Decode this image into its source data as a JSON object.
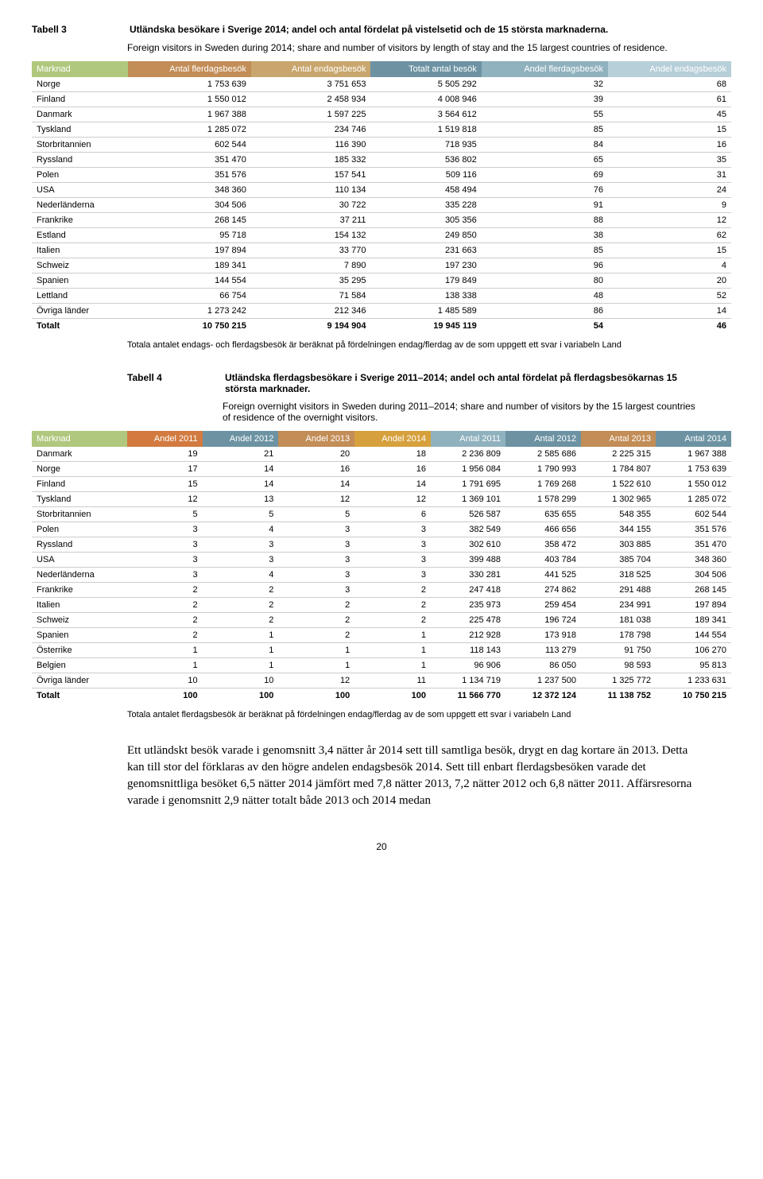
{
  "tabell3": {
    "label": "Tabell 3",
    "title": "Utländska besökare i Sverige 2014; andel och antal fördelat på vistelsetid och de 15 största marknaderna.",
    "subtitle": "Foreign visitors in Sweden during 2014; share and number of visitors by length of stay and the 15 largest countries of residence.",
    "header_colors": [
      "#b0c77e",
      "#c28d57",
      "#c8a66d",
      "#6d93a3",
      "#90b1be",
      "#b7cfd9"
    ],
    "columns": [
      "Marknad",
      "Antal flerdagsbesök",
      "Antal endagsbesök",
      "Totalt antal besök",
      "Andel flerdagsbesök",
      "Andel endagsbesök"
    ],
    "rows": [
      [
        "Norge",
        "1 753 639",
        "3 751 653",
        "5 505 292",
        "32",
        "68"
      ],
      [
        "Finland",
        "1 550 012",
        "2 458 934",
        "4 008 946",
        "39",
        "61"
      ],
      [
        "Danmark",
        "1 967 388",
        "1 597 225",
        "3 564 612",
        "55",
        "45"
      ],
      [
        "Tyskland",
        "1 285 072",
        "234 746",
        "1 519 818",
        "85",
        "15"
      ],
      [
        "Storbritannien",
        "602 544",
        "116 390",
        "718 935",
        "84",
        "16"
      ],
      [
        "Ryssland",
        "351 470",
        "185 332",
        "536 802",
        "65",
        "35"
      ],
      [
        "Polen",
        "351 576",
        "157 541",
        "509 116",
        "69",
        "31"
      ],
      [
        "USA",
        "348 360",
        "110 134",
        "458 494",
        "76",
        "24"
      ],
      [
        "Nederländerna",
        "304 506",
        "30 722",
        "335 228",
        "91",
        "9"
      ],
      [
        "Frankrike",
        "268 145",
        "37 211",
        "305 356",
        "88",
        "12"
      ],
      [
        "Estland",
        "95 718",
        "154 132",
        "249 850",
        "38",
        "62"
      ],
      [
        "Italien",
        "197 894",
        "33 770",
        "231 663",
        "85",
        "15"
      ],
      [
        "Schweiz",
        "189 341",
        "7 890",
        "197 230",
        "96",
        "4"
      ],
      [
        "Spanien",
        "144 554",
        "35 295",
        "179 849",
        "80",
        "20"
      ],
      [
        "Lettland",
        "66 754",
        "71 584",
        "138 338",
        "48",
        "52"
      ],
      [
        "Övriga länder",
        "1 273 242",
        "212 346",
        "1 485 589",
        "86",
        "14"
      ]
    ],
    "total": [
      "Totalt",
      "10 750 215",
      "9 194 904",
      "19 945 119",
      "54",
      "46"
    ],
    "footnote": "Totala antalet endags- och flerdagsbesök är beräknat på fördelningen endag/flerdag av de som uppgett ett svar i variabeln Land"
  },
  "tabell4": {
    "label": "Tabell 4",
    "title": "Utländska flerdagsbesökare i Sverige 2011–2014; andel och antal fördelat på flerdagsbesökarnas 15 största marknader.",
    "subtitle": "Foreign overnight visitors in Sweden during 2011–2014; share and number of visitors by the 15 largest countries of residence of the overnight visitors.",
    "header_colors": [
      "#b0c77e",
      "#d27a3f",
      "#6d93a3",
      "#c28d57",
      "#d6a13c",
      "#90b1be",
      "#6d93a3",
      "#c28d57",
      "#6d93a3"
    ],
    "columns": [
      "Marknad",
      "Andel 2011",
      "Andel 2012",
      "Andel 2013",
      "Andel 2014",
      "Antal 2011",
      "Antal 2012",
      "Antal 2013",
      "Antal 2014"
    ],
    "rows": [
      [
        "Danmark",
        "19",
        "21",
        "20",
        "18",
        "2 236 809",
        "2 585 686",
        "2 225 315",
        "1 967 388"
      ],
      [
        "Norge",
        "17",
        "14",
        "16",
        "16",
        "1 956 084",
        "1 790 993",
        "1 784 807",
        "1 753 639"
      ],
      [
        "Finland",
        "15",
        "14",
        "14",
        "14",
        "1 791 695",
        "1 769 268",
        "1 522 610",
        "1 550 012"
      ],
      [
        "Tyskland",
        "12",
        "13",
        "12",
        "12",
        "1 369 101",
        "1 578 299",
        "1 302 965",
        "1 285 072"
      ],
      [
        "Storbritannien",
        "5",
        "5",
        "5",
        "6",
        "526 587",
        "635 655",
        "548 355",
        "602 544"
      ],
      [
        "Polen",
        "3",
        "4",
        "3",
        "3",
        "382 549",
        "466 656",
        "344 155",
        "351 576"
      ],
      [
        "Ryssland",
        "3",
        "3",
        "3",
        "3",
        "302 610",
        "358 472",
        "303 885",
        "351 470"
      ],
      [
        "USA",
        "3",
        "3",
        "3",
        "3",
        "399 488",
        "403 784",
        "385 704",
        "348 360"
      ],
      [
        "Nederländerna",
        "3",
        "4",
        "3",
        "3",
        "330 281",
        "441 525",
        "318 525",
        "304 506"
      ],
      [
        "Frankrike",
        "2",
        "2",
        "3",
        "2",
        "247 418",
        "274 862",
        "291 488",
        "268 145"
      ],
      [
        "Italien",
        "2",
        "2",
        "2",
        "2",
        "235 973",
        "259 454",
        "234 991",
        "197 894"
      ],
      [
        "Schweiz",
        "2",
        "2",
        "2",
        "2",
        "225 478",
        "196 724",
        "181 038",
        "189 341"
      ],
      [
        "Spanien",
        "2",
        "1",
        "2",
        "1",
        "212 928",
        "173 918",
        "178 798",
        "144 554"
      ],
      [
        "Österrike",
        "1",
        "1",
        "1",
        "1",
        "118 143",
        "113 279",
        "91 750",
        "106 270"
      ],
      [
        "Belgien",
        "1",
        "1",
        "1",
        "1",
        "96 906",
        "86 050",
        "98 593",
        "95 813"
      ],
      [
        "Övriga länder",
        "10",
        "10",
        "12",
        "11",
        "1 134 719",
        "1 237 500",
        "1 325 772",
        "1 233 631"
      ]
    ],
    "total": [
      "Totalt",
      "100",
      "100",
      "100",
      "100",
      "11 566 770",
      "12 372 124",
      "11 138 752",
      "10 750 215"
    ],
    "footnote": "Totala antalet flerdagsbesök är beräknat på fördelningen endag/flerdag av de som uppgett ett svar i variabeln Land"
  },
  "body": "Ett utländskt besök varade i genomsnitt 3,4 nätter år 2014 sett till samtliga besök, drygt en dag kortare än 2013. Detta kan till stor del förklaras av den högre andelen endagsbesök 2014. Sett till enbart flerdagsbesöken varade det genomsnittliga besöket 6,5 nätter 2014 jämfört med 7,8 nätter 2013, 7,2 nätter 2012 och 6,8 nätter 2011. Affärsresorna varade i genomsnitt 2,9 nätter totalt både 2013 och 2014 medan",
  "pagenum": "20"
}
